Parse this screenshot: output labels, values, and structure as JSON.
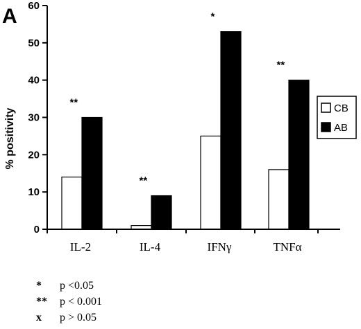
{
  "panel_label": "A",
  "chart_data": {
    "type": "bar",
    "title": "",
    "xlabel": "",
    "ylabel": "% positivity",
    "ylim": [
      0,
      60
    ],
    "yticks": [
      "0",
      "10",
      "20",
      "30",
      "40",
      "50",
      "60"
    ],
    "categories": [
      "IL-2",
      "IL-4",
      "IFNγ",
      "TNFα"
    ],
    "series": [
      {
        "name": "CB",
        "values": [
          14,
          1,
          25,
          16
        ],
        "color": "#ffffff"
      },
      {
        "name": "AB",
        "values": [
          30,
          9,
          53,
          40
        ],
        "color": "#000000"
      }
    ],
    "annotations": [
      "**",
      "**",
      "*",
      "**"
    ],
    "legend_position": "right",
    "grid": false
  },
  "footnotes": [
    {
      "symbol": "*",
      "text": "p <0.05"
    },
    {
      "symbol": "**",
      "text": "p < 0.001"
    },
    {
      "symbol": "x",
      "text": "p > 0.05"
    }
  ]
}
